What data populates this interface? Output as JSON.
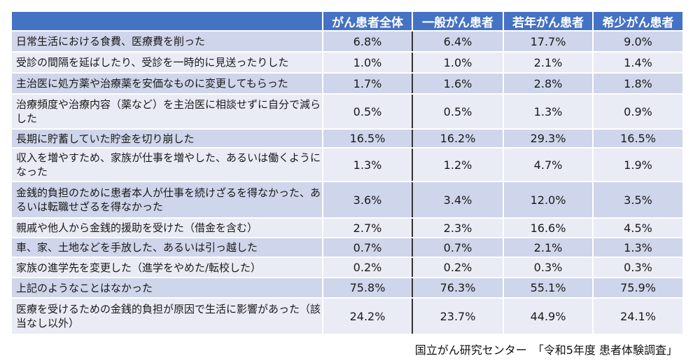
{
  "table": {
    "headers": [
      "",
      "がん患者全体",
      "一般がん患者",
      "若年がん患者",
      "希少がん患者"
    ],
    "rows": [
      {
        "label": "日常生活における食費、医療費を削った",
        "values": [
          "6.8%",
          "6.4%",
          "17.7%",
          "9.0%"
        ]
      },
      {
        "label": "受診の間隔を延ばしたり、受診を一時的に見送ったりした",
        "values": [
          "1.0%",
          "1.0%",
          "2.1%",
          "1.4%"
        ]
      },
      {
        "label": "主治医に処方薬や治療薬を安価なものに変更してもらった",
        "values": [
          "1.7%",
          "1.6%",
          "2.8%",
          "1.8%"
        ]
      },
      {
        "label": "治療頻度や治療内容（薬など）を主治医に相談せずに自分で減らした",
        "values": [
          "0.5%",
          "0.5%",
          "1.3%",
          "0.9%"
        ]
      },
      {
        "label": "長期に貯蓄していた貯金を切り崩した",
        "values": [
          "16.5%",
          "16.2%",
          "29.3%",
          "16.5%"
        ]
      },
      {
        "label": "収入を増やすため、家族が仕事を増やした、あるいは働くようになった",
        "values": [
          "1.3%",
          "1.2%",
          "4.7%",
          "1.9%"
        ]
      },
      {
        "label": "金銭的負担のために患者本人が仕事を続けざるを得なかった、あるいは転職せざるを得なかった",
        "values": [
          "3.6%",
          "3.4%",
          "12.0%",
          "3.5%"
        ]
      },
      {
        "label": "親戚や他人から金銭的援助を受けた（借金を含む）",
        "values": [
          "2.7%",
          "2.3%",
          "16.6%",
          "4.5%"
        ]
      },
      {
        "label": "車、家、土地などを手放した、あるいは引っ越した",
        "values": [
          "0.7%",
          "0.7%",
          "2.1%",
          "1.3%"
        ]
      },
      {
        "label": "家族の進学先を変更した（進学をやめた/転校した）",
        "values": [
          "0.2%",
          "0.2%",
          "0.3%",
          "0.3%"
        ]
      },
      {
        "label": "上記のようなことはなかった",
        "values": [
          "75.8%",
          "76.3%",
          "55.1%",
          "75.9%"
        ]
      },
      {
        "label": "医療を受けるための金銭的負担が原因で生活に影響があった（該当なし以外）",
        "values": [
          "24.2%",
          "23.7%",
          "44.9%",
          "24.1%"
        ]
      }
    ]
  },
  "source": "国立がん研究センター　「令和5年度 患者体験調査」",
  "colors": {
    "header": "#4472c4",
    "row_dark": "#cfd5ea",
    "row_light": "#e9ebf5"
  }
}
